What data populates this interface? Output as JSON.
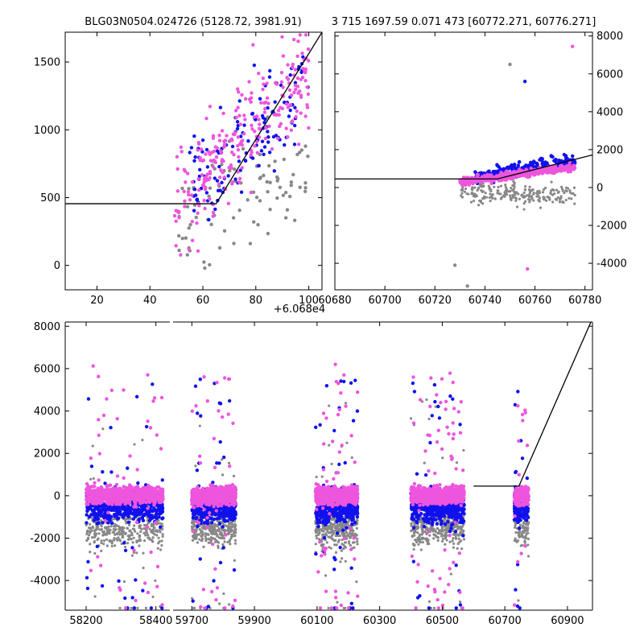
{
  "titles": {
    "left": "BLG03N0504.024726 (5128.72, 3981.91)",
    "right": "3 715 1697.59 0.071 473 [60772.271, 60776.271]"
  },
  "colors": {
    "pink": "#ee55dd",
    "blue": "#1111ee",
    "gray": "#888888",
    "line": "#000000"
  },
  "chart_data": [
    {
      "id": "top-left",
      "type": "scatter",
      "title": "BLG03N0504.024726 (5128.72, 3981.91)",
      "xlim": [
        8,
        105
      ],
      "ylim": [
        -180,
        1720
      ],
      "x_offset_label": "+6.068e4",
      "xticks": [
        20,
        40,
        60,
        80,
        100
      ],
      "yticks": [
        0,
        500,
        1000,
        1500
      ],
      "model_line": [
        [
          8,
          455
        ],
        [
          65,
          455
        ],
        [
          105,
          1720
        ]
      ],
      "series": [
        {
          "name": "pink",
          "x_range": [
            48,
            100
          ],
          "y_range": [
            -50,
            1700
          ],
          "count": 260,
          "trend": [
            455,
            1400
          ],
          "seed": 11
        },
        {
          "name": "blue",
          "x_range": [
            55,
            100
          ],
          "y_range": [
            -150,
            1720
          ],
          "count": 130,
          "trend": [
            600,
            1300
          ],
          "seed": 23
        },
        {
          "name": "gray",
          "x_range": [
            50,
            100
          ],
          "y_range": [
            -150,
            1400
          ],
          "count": 90,
          "trend": [
            300,
            700
          ],
          "seed": 37
        }
      ]
    },
    {
      "id": "top-right",
      "type": "scatter",
      "xlim": [
        60680,
        60783
      ],
      "ylim": [
        -5400,
        8200
      ],
      "xticks": [
        60680,
        60700,
        60720,
        60740,
        60760,
        60780
      ],
      "yticks": [
        -4000,
        -2000,
        0,
        2000,
        4000,
        6000,
        8000
      ],
      "model_line": [
        [
          60680,
          455
        ],
        [
          60745,
          455
        ],
        [
          60783,
          1720
        ]
      ],
      "series": [
        {
          "name": "gray",
          "x_range": [
            60730,
            60776
          ],
          "y_range": [
            -3500,
            1500
          ],
          "count": 220,
          "trend": [
            -200,
            -500
          ],
          "seed": 41
        },
        {
          "name": "blue",
          "x_range": [
            60735,
            60776
          ],
          "y_range": [
            -200,
            3000
          ],
          "count": 260,
          "trend": [
            500,
            1500
          ],
          "seed": 53
        },
        {
          "name": "pink",
          "x_range": [
            60730,
            60776
          ],
          "y_range": [
            -300,
            2500
          ],
          "count": 420,
          "trend": [
            300,
            1100
          ],
          "seed": 67
        }
      ],
      "outliers": [
        {
          "x": 60775,
          "y": 7450,
          "series": "pink"
        },
        {
          "x": 60750,
          "y": 6500,
          "series": "gray"
        },
        {
          "x": 60756,
          "y": 5600,
          "series": "blue"
        },
        {
          "x": 60728,
          "y": -4100,
          "series": "gray"
        },
        {
          "x": 60733,
          "y": -5200,
          "series": "gray"
        },
        {
          "x": 60757,
          "y": -4300,
          "series": "pink"
        }
      ]
    },
    {
      "id": "bottom",
      "type": "scatter",
      "broken_x_axis": true,
      "ylim": [
        -5400,
        8200
      ],
      "yticks": [
        -4000,
        -2000,
        0,
        2000,
        4000,
        6000,
        8000
      ],
      "segments": [
        {
          "xlim": [
            58140,
            58440
          ],
          "xticks": [
            58200,
            58400
          ],
          "data_range": [
            58200,
            58420
          ]
        },
        {
          "xlim": [
            59640,
            60980
          ],
          "xticks": [
            59700,
            59900,
            60100,
            60300,
            60500,
            60700,
            60900
          ],
          "seasons": [
            [
              59700,
              59840
            ],
            [
              60095,
              60230
            ],
            [
              60400,
              60570
            ],
            [
              60730,
              60776
            ]
          ]
        }
      ],
      "model_line": [
        [
          60600,
          455
        ],
        [
          60745,
          455
        ],
        [
          60975,
          8200
        ]
      ],
      "series": [
        "gray",
        "blue",
        "pink"
      ]
    }
  ]
}
